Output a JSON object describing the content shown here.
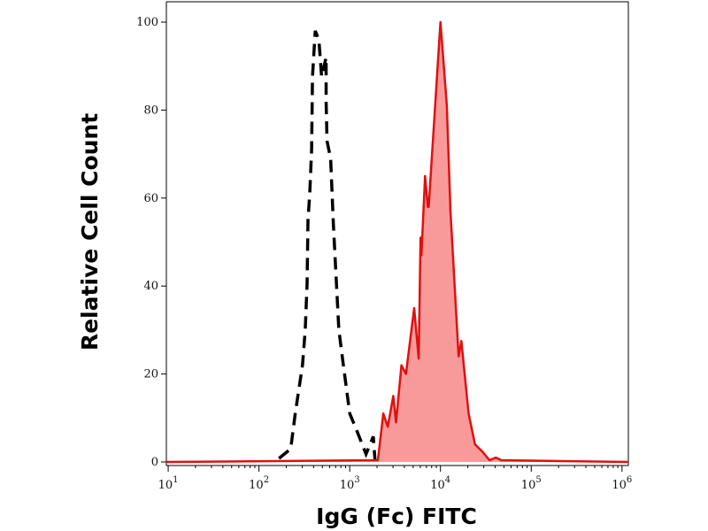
{
  "chart_data": {
    "type": "area",
    "title": "",
    "xlabel": "IgG (Fc) FITC",
    "ylabel": "Relative Cell Count",
    "x_scale": "log",
    "xlim_log10": [
      0.98,
      6.07
    ],
    "ylim": [
      0,
      100
    ],
    "grid": false,
    "legend": "none",
    "x_ticks": [
      {
        "base": "10",
        "exp": "1",
        "value": 10
      },
      {
        "base": "10",
        "exp": "2",
        "value": 100
      },
      {
        "base": "10",
        "exp": "3",
        "value": 1000
      },
      {
        "base": "10",
        "exp": "4",
        "value": 10000
      },
      {
        "base": "10",
        "exp": "5",
        "value": 100000
      },
      {
        "base": "10",
        "exp": "6",
        "value": 1000000
      }
    ],
    "y_ticks": [
      {
        "label": "0",
        "value": 0
      },
      {
        "label": "20",
        "value": 20
      },
      {
        "label": "40",
        "value": 40
      },
      {
        "label": "60",
        "value": 60
      },
      {
        "label": "80",
        "value": 80
      },
      {
        "label": "100",
        "value": 100
      }
    ],
    "series": [
      {
        "style": "dashed-line",
        "color": "#000000",
        "log10_x": [
          2.22,
          2.35,
          2.4,
          2.48,
          2.51,
          2.53,
          2.54,
          2.56,
          2.58,
          2.59,
          2.62,
          2.66,
          2.69,
          2.74,
          2.74,
          2.75,
          2.79,
          2.82,
          2.85,
          2.88,
          2.93,
          3.0,
          3.08,
          3.18,
          3.26,
          3.28
        ],
        "y": [
          0.8,
          3,
          11,
          22,
          30,
          40.6,
          55,
          61,
          71,
          87.6,
          98,
          96,
          87.6,
          92,
          82,
          73,
          69,
          54,
          42,
          30,
          22,
          11,
          7,
          1.8,
          5.8,
          0
        ]
      },
      {
        "style": "filled",
        "color": "#e01010",
        "fill": "#f89a9a",
        "log10_x": [
          0.98,
          3.31,
          3.37,
          3.42,
          3.48,
          3.51,
          3.57,
          3.62,
          3.71,
          3.76,
          3.78,
          3.79,
          3.83,
          3.86,
          3.87,
          4.0,
          4.07,
          4.11,
          4.2,
          4.23,
          4.31,
          4.38,
          4.46,
          4.54,
          4.61,
          4.67,
          6.07
        ],
        "y": [
          0,
          0.4,
          11,
          8,
          15,
          9,
          22,
          20,
          35,
          23.5,
          51,
          47,
          65,
          58,
          58,
          100,
          81,
          57,
          24,
          27.5,
          11,
          4,
          2.4,
          0.4,
          1,
          0.4,
          0
        ]
      }
    ]
  }
}
